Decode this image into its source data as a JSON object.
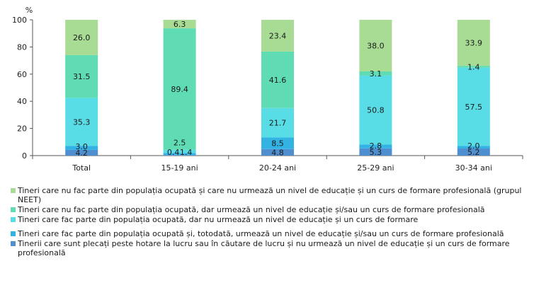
{
  "chart_data": {
    "type": "bar",
    "stacked": true,
    "unit_label": "%",
    "ylim": [
      0,
      100
    ],
    "yticks": [
      0,
      20,
      40,
      60,
      80,
      100
    ],
    "grid": false,
    "legend_position": "bottom",
    "categories": [
      "Total",
      "15-19 ani",
      "20-24 ani",
      "25-29 ani",
      "30-34 ani"
    ],
    "series": [
      {
        "name": "Tinerii care sunt plecați peste hotare la lucru sau în căutare de lucru și nu urmează un nivel de educație și un curs de formare profesională",
        "color": "#4f8fd0",
        "values": [
          4.2,
          0.4,
          4.8,
          5.3,
          5.2
        ],
        "labels": [
          "4.2",
          "0.4",
          "4.8",
          "5.3",
          "5.2"
        ]
      },
      {
        "name": "Tineri care fac parte din populația ocupată și, totodată, urmează un nivel de educație și/sau un curs de formare profesională",
        "color": "#33b2e4",
        "values": [
          3.0,
          1.4,
          8.5,
          2.8,
          2.0
        ],
        "labels": [
          "3.0",
          "1.4",
          "8.5",
          "2.8",
          "2.0"
        ]
      },
      {
        "name": "Tineri care fac parte din populația ocupată, dar nu urmează un nivel de educație și un curs de formare",
        "color": "#58dde6",
        "values": [
          35.3,
          2.5,
          21.7,
          50.8,
          57.5
        ],
        "labels": [
          "35.3",
          "2.5",
          "21.7",
          "50.8",
          "57.5"
        ]
      },
      {
        "name": "Tineri care nu fac parte din populația ocupată, dar urmează un nivel de educație și/sau un curs de formare profesională",
        "color": "#5fdcb3",
        "values": [
          31.5,
          89.4,
          41.6,
          3.1,
          1.4
        ],
        "labels": [
          "31.5",
          "89.4",
          "41.6",
          "3.1",
          "1.4"
        ]
      },
      {
        "name": "Tineri care nu fac parte din populația ocupată și care nu urmează un nivel de educație și un curs de formare profesională (grupul NEET)",
        "color": "#a8dc94",
        "values": [
          26.0,
          6.3,
          23.4,
          38.0,
          33.9
        ],
        "labels": [
          "26.0",
          "6.3",
          "23.4",
          "38.0",
          "33.9"
        ]
      }
    ]
  },
  "legend": {
    "items": [
      {
        "label": "Tineri care nu fac parte din populația ocupată și care nu urmează un nivel de educație și un curs de formare profesională (grupul NEET)",
        "color": "#a8dc94"
      },
      {
        "label": "Tineri care nu fac parte din populația ocupată, dar urmează un nivel de educație și/sau un curs de formare profesională",
        "color": "#5fdcb3"
      },
      {
        "label": "Tineri care fac parte din populația ocupată, dar nu urmează un nivel de educație și un curs de formare",
        "color": "#58dde6"
      },
      {
        "label": "Tineri care fac parte din populația ocupată și, totodată, urmează un nivel de educație și/sau un curs de formare profesională",
        "color": "#33b2e4"
      },
      {
        "label": "Tinerii care sunt plecați peste hotare la lucru sau în căutare de lucru și nu urmează un nivel de educație și un curs de formare profesională",
        "color": "#4f8fd0"
      }
    ]
  }
}
